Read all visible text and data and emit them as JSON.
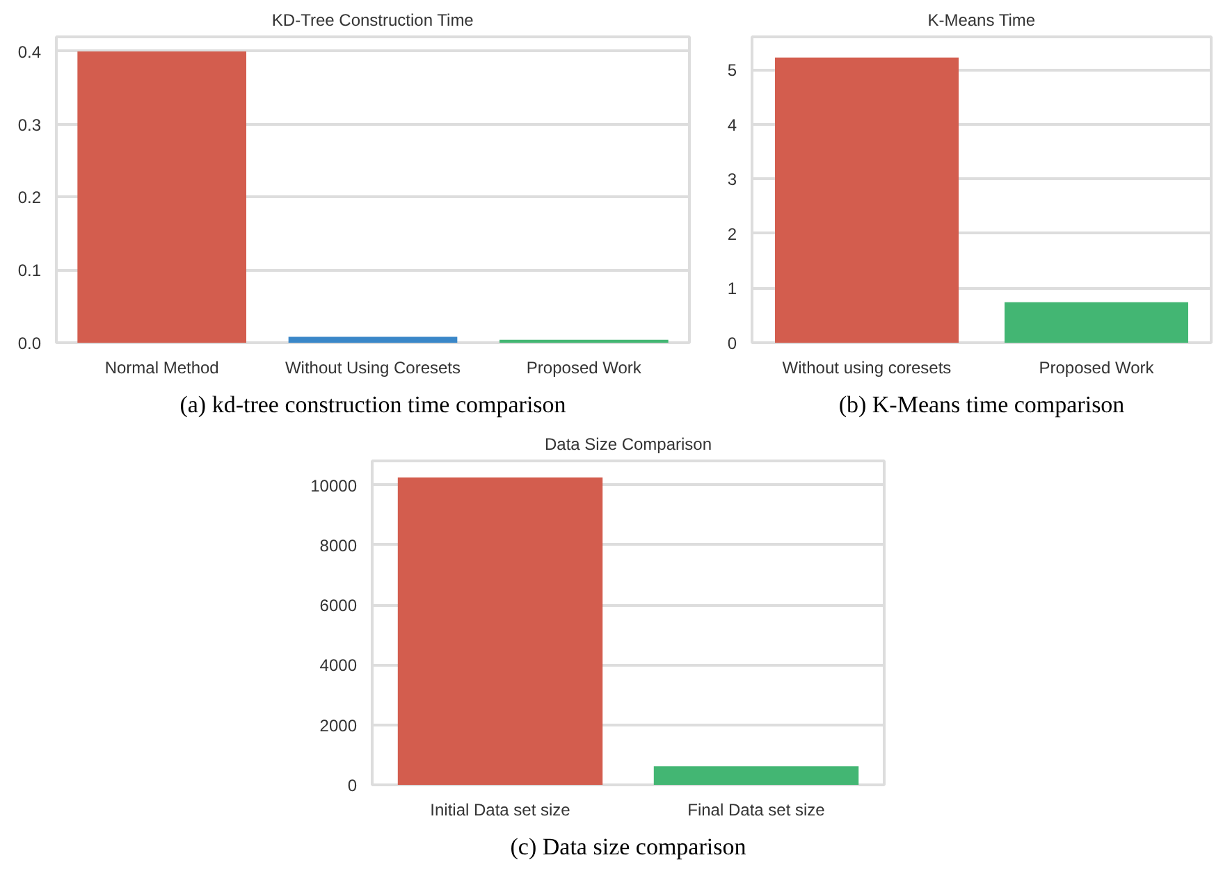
{
  "chart_data": [
    {
      "type": "bar",
      "title": "KD-Tree Construction Time",
      "categories": [
        "Normal Method",
        "Without Using Coresets",
        "Proposed Work"
      ],
      "values": [
        0.4,
        0.008,
        0.004
      ],
      "colors": [
        "#d35d4e",
        "#3a87c8",
        "#43b673"
      ],
      "ylim": [
        0,
        0.42
      ],
      "yticks": [
        {
          "value": 0,
          "label": "0.0"
        },
        0.1,
        0.2,
        0.3,
        0.4
      ],
      "grid": "y",
      "annotations": [
        "(a) kd-tree construction time comparison"
      ]
    },
    {
      "type": "bar",
      "title": "K-Means Time",
      "categories": [
        "Without using coresets",
        "Proposed Work"
      ],
      "values": [
        5.22,
        0.74
      ],
      "colors": [
        "#d35d4e",
        "#43b673"
      ],
      "ylim": [
        0,
        5.6
      ],
      "yticks": [
        0,
        1,
        2,
        3,
        4,
        5
      ],
      "grid": "y",
      "annotations": [
        "(b) K-Means time comparison"
      ]
    },
    {
      "type": "bar",
      "title": "Data Size Comparison",
      "categories": [
        "Initial Data set size",
        "Final Data set size"
      ],
      "values": [
        10250,
        620
      ],
      "colors": [
        "#d35d4e",
        "#43b673"
      ],
      "ylim": [
        0,
        10800
      ],
      "yticks": [
        0,
        2000,
        4000,
        6000,
        8000,
        10000
      ],
      "grid": "y",
      "annotations": [
        "(c) Data size comparison"
      ]
    }
  ]
}
